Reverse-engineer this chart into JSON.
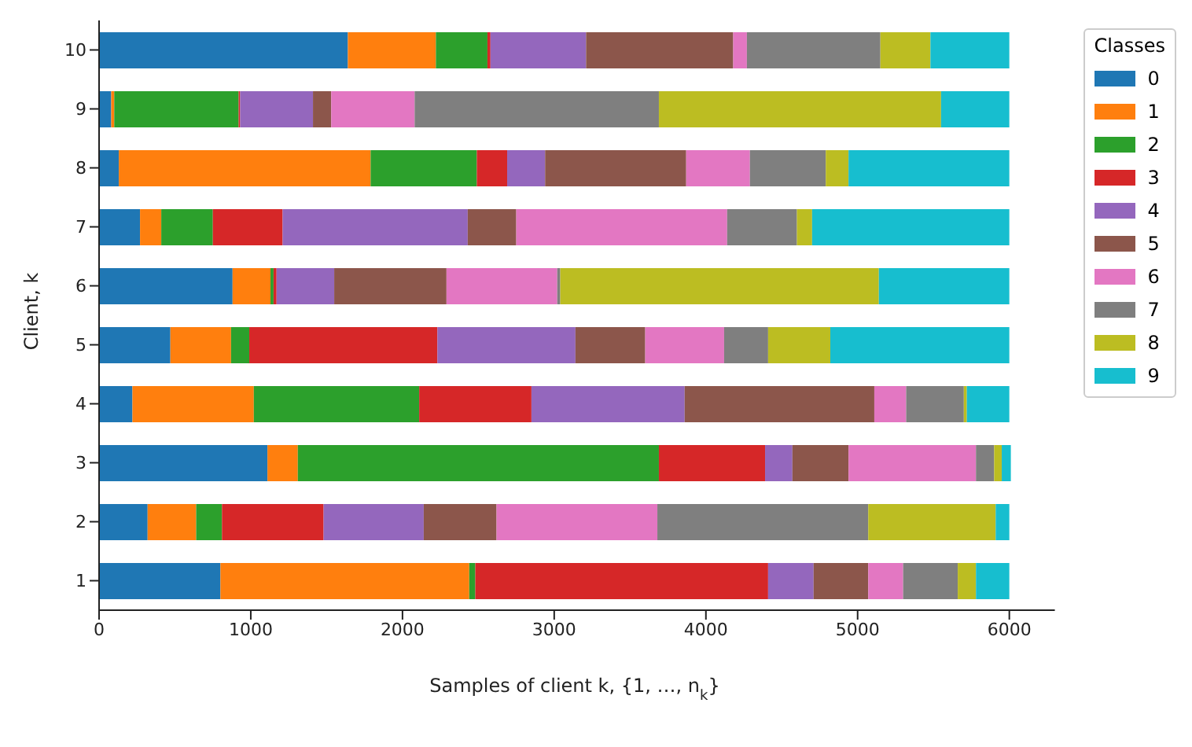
{
  "chart_data": {
    "type": "bar",
    "orientation": "horizontal",
    "stacked": true,
    "xlabel": "Samples of client k, {1, …, n$_{k}$}",
    "ylabel": "Client, k",
    "legend_title": "Classes",
    "legend": "right",
    "grid": false,
    "categories": [
      "10",
      "9",
      "8",
      "7",
      "6",
      "5",
      "4",
      "3",
      "2",
      "1"
    ],
    "xlim": [
      0,
      6300
    ],
    "xticks": [
      0,
      1000,
      2000,
      3000,
      4000,
      5000,
      6000
    ],
    "series": [
      {
        "name": "0",
        "color": "#1f77b4",
        "values": [
          1640,
          80,
          130,
          270,
          880,
          470,
          220,
          1110,
          320,
          800
        ]
      },
      {
        "name": "1",
        "color": "#ff7f0e",
        "values": [
          580,
          20,
          1660,
          140,
          250,
          400,
          800,
          200,
          320,
          1640
        ]
      },
      {
        "name": "2",
        "color": "#2ca02c",
        "values": [
          340,
          820,
          700,
          340,
          20,
          120,
          1090,
          2380,
          170,
          40
        ]
      },
      {
        "name": "3",
        "color": "#d62728",
        "values": [
          20,
          10,
          200,
          460,
          20,
          1240,
          740,
          700,
          670,
          1930
        ]
      },
      {
        "name": "4",
        "color": "#9467bd",
        "values": [
          630,
          480,
          250,
          1220,
          380,
          910,
          1010,
          180,
          660,
          300
        ]
      },
      {
        "name": "5",
        "color": "#8c564b",
        "values": [
          970,
          120,
          930,
          320,
          740,
          460,
          1250,
          370,
          480,
          360
        ]
      },
      {
        "name": "6",
        "color": "#e377c2",
        "values": [
          90,
          550,
          420,
          1390,
          730,
          520,
          210,
          840,
          1060,
          230
        ]
      },
      {
        "name": "7",
        "color": "#7f7f7f",
        "values": [
          880,
          1610,
          500,
          460,
          20,
          290,
          380,
          120,
          1390,
          360
        ]
      },
      {
        "name": "8",
        "color": "#bcbd22",
        "values": [
          330,
          1860,
          150,
          100,
          2100,
          410,
          20,
          50,
          840,
          120
        ]
      },
      {
        "name": "9",
        "color": "#17becf",
        "values": [
          520,
          450,
          1060,
          1300,
          860,
          1180,
          280,
          60,
          90,
          220
        ]
      }
    ]
  }
}
